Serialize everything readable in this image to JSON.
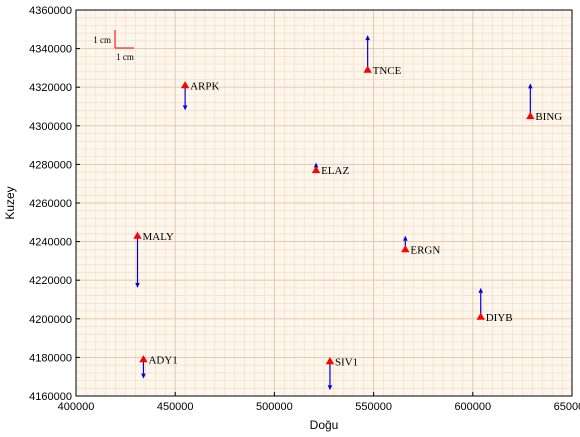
{
  "chart_data": {
    "type": "scatter",
    "title": "",
    "xlabel": "Doğu",
    "ylabel": "Kuzey",
    "xlim": [
      400000,
      650000
    ],
    "ylim": [
      4160000,
      4360000
    ],
    "x_ticks": [
      400000,
      450000,
      500000,
      550000,
      600000,
      650000
    ],
    "y_ticks": [
      4160000,
      4180000,
      4200000,
      4220000,
      4240000,
      4260000,
      4280000,
      4300000,
      4320000,
      4340000,
      4360000
    ],
    "x_tick_labels": [
      "400000",
      "450000",
      "500000",
      "550000",
      "600000",
      "650000"
    ],
    "y_tick_labels": [
      "4160000",
      "4180000",
      "4200000",
      "4220000",
      "4240000",
      "4260000",
      "4280000",
      "4300000",
      "4320000",
      "4340000",
      "4360000"
    ],
    "grid": true,
    "grid_minor_step_x": 5000,
    "grid_minor_step_y": 4000,
    "marker": "triangle",
    "marker_color": "#ff0000",
    "arrow_color": "#0000dd",
    "grid_color": "#f3dcc6",
    "background_color": "#fdf6ec",
    "scale": {
      "vertical_label": "1 cm",
      "horizontal_label": "1 cm",
      "color": "#ff0000"
    },
    "points": [
      {
        "label": "TNCE",
        "x": 547000,
        "y": 4329000,
        "arrow_dy": 18000
      },
      {
        "label": "ARPK",
        "x": 455000,
        "y": 4321000,
        "arrow_dy": -13000
      },
      {
        "label": "BING",
        "x": 629000,
        "y": 4305000,
        "arrow_dy": 17000
      },
      {
        "label": "ELAZ",
        "x": 521000,
        "y": 4277000,
        "arrow_dy": 4000
      },
      {
        "label": "MALY",
        "x": 431000,
        "y": 4243000,
        "arrow_dy": -27000
      },
      {
        "label": "ERGN",
        "x": 566000,
        "y": 4236000,
        "arrow_dy": 7000
      },
      {
        "label": "DIYB",
        "x": 604000,
        "y": 4201000,
        "arrow_dy": 15000
      },
      {
        "label": "ADY1",
        "x": 434000,
        "y": 4179000,
        "arrow_dy": -10000
      },
      {
        "label": "SIV1",
        "x": 528000,
        "y": 4178000,
        "arrow_dy": -15000
      }
    ]
  }
}
